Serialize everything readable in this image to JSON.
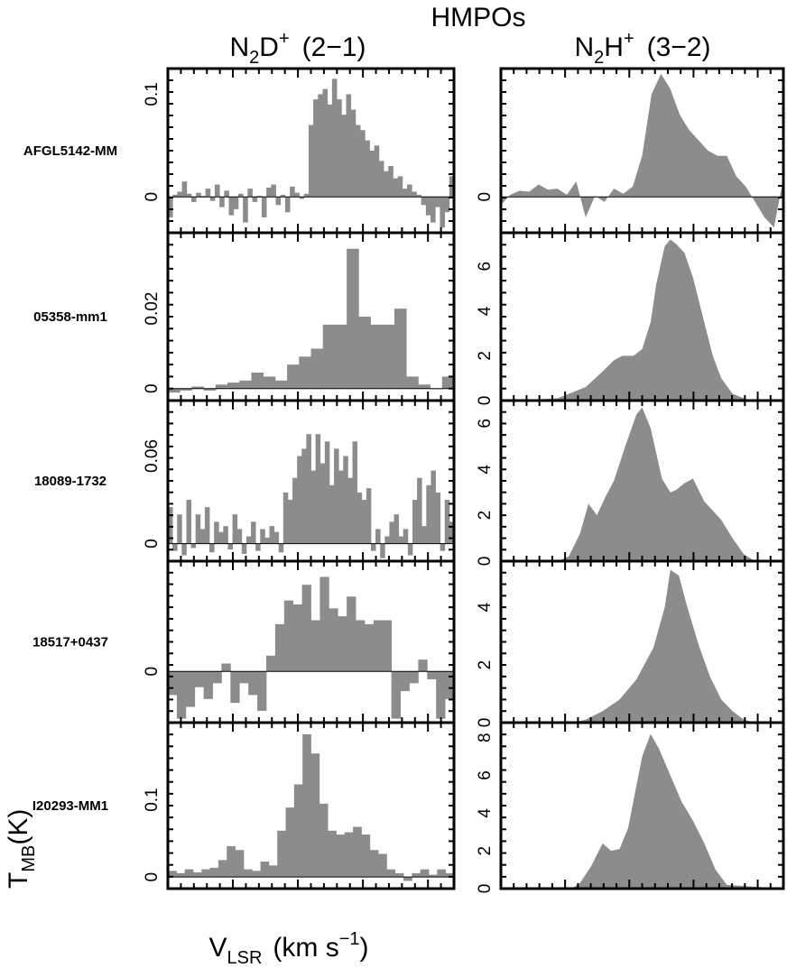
{
  "figure": {
    "header": "HMPOs",
    "col_left": {
      "main": "N",
      "sub": "2",
      "rest": "D",
      "sup": "+",
      "trans": "(2−1)"
    },
    "col_right": {
      "main": "N",
      "sub": "2",
      "rest": "H",
      "sup": "+",
      "trans": "(3−2)"
    },
    "ylabel": {
      "main": "T",
      "sub": "MB",
      "rest": "(K)"
    },
    "xlabel": {
      "main": "V",
      "sub": "LSR",
      "rest": "(km s",
      "sup": "−1",
      "close": ")"
    }
  },
  "chart_data": [
    {
      "type": "bar",
      "source": "AFGL5142-MM",
      "line": "N2D+ (2-1)",
      "ylim": [
        -0.035,
        0.125
      ],
      "yticks": [
        {
          "v": 0,
          "l": "0"
        },
        {
          "v": 0.1,
          "l": "0.1"
        }
      ],
      "values": [
        -0.02,
        0.002,
        0.005,
        0.015,
        0.003,
        -0.005,
        0.004,
        0.001,
        0.008,
        -0.004,
        0.012,
        -0.01,
        0.006,
        -0.018,
        -0.012,
        0.003,
        -0.025,
        0.008,
        -0.005,
        0.001,
        -0.02,
        0.009,
        0.012,
        -0.008,
        0.002,
        -0.015,
        0.01,
        0.004,
        -0.002,
        0.003,
        0.07,
        0.095,
        0.1,
        0.105,
        0.09,
        0.115,
        0.095,
        0.08,
        0.1,
        0.085,
        0.07,
        0.065,
        0.055,
        0.045,
        0.05,
        0.035,
        0.025,
        0.03,
        0.018,
        0.02,
        0.008,
        0.012,
        0.005,
        0.002,
        -0.008,
        -0.018,
        -0.025,
        -0.01,
        -0.03,
        -0.015,
        0.02
      ]
    },
    {
      "type": "bar",
      "source": "05358-mm1",
      "line": "N2D+ (2-1)",
      "ylim": [
        -0.003,
        0.039
      ],
      "yticks": [
        {
          "v": 0,
          "l": "0"
        },
        {
          "v": 0.02,
          "l": "0.02"
        }
      ],
      "values": [
        -0.001,
        -0.0005,
        0.0005,
        -0.0005,
        0.001,
        0.0015,
        0.002,
        0.004,
        0.003,
        0.002,
        0.006,
        0.008,
        0.01,
        0.016,
        0.016,
        0.035,
        0.018,
        0.016,
        0.016,
        0.02,
        0.003,
        0.001,
        0,
        0.003
      ]
    },
    {
      "type": "bar",
      "source": "18089-1732",
      "line": "N2D+ (2-1)",
      "ylim": [
        -0.012,
        0.098
      ],
      "yticks": [
        {
          "v": 0,
          "l": "0"
        },
        {
          "v": 0.06,
          "l": "0.06"
        }
      ],
      "values": [
        0.025,
        -0.005,
        0.02,
        -0.008,
        0.03,
        -0.003,
        0.02,
        0.01,
        0.025,
        -0.006,
        0.015,
        0.008,
        0.012,
        -0.004,
        0.02,
        0.01,
        -0.007,
        0.005,
        0.015,
        -0.005,
        0.01,
        0.004,
        0.012,
        0.008,
        -0.006,
        0.035,
        0.03,
        0.045,
        0.06,
        0.065,
        0.075,
        0.05,
        0.075,
        0.055,
        0.07,
        0.04,
        0.065,
        0.05,
        0.06,
        0.045,
        0.07,
        0.035,
        0.03,
        0.038,
        -0.005,
        0.01,
        -0.01,
        0.005,
        0.015,
        0.02,
        0.005,
        0.01,
        -0.008,
        0.03,
        0.045,
        0.012,
        0.04,
        0.05,
        0.035,
        -0.005,
        0.03,
        0.015
      ]
    },
    {
      "type": "bar",
      "source": "18517+0437",
      "line": "N2D+ (2-1)",
      "ylim": [
        -0.013,
        0.028
      ],
      "yticks": [
        {
          "v": 0,
          "l": "0"
        }
      ],
      "values": [
        -0.006,
        -0.012,
        -0.009,
        -0.004,
        -0.007,
        -0.003,
        0.002,
        -0.008,
        -0.003,
        -0.006,
        -0.01,
        0.004,
        0.012,
        0.018,
        0.017,
        0.022,
        0.013,
        0.024,
        0.016,
        0.014,
        0.019,
        0.013,
        0.012,
        0.013,
        0.013,
        -0.012,
        -0.005,
        -0.003,
        0.003,
        -0.002,
        -0.012,
        -0.007
      ]
    },
    {
      "type": "bar",
      "source": "I20293-MM1",
      "line": "N2D+ (2-1)",
      "ylim": [
        -0.015,
        0.2
      ],
      "yticks": [
        {
          "v": 0,
          "l": "0"
        },
        {
          "v": 0.1,
          "l": "0.1"
        }
      ],
      "values": [
        0.008,
        0.005,
        0.01,
        0.006,
        0.01,
        0.012,
        0.022,
        0.04,
        0.035,
        0.01,
        0.008,
        0.02,
        0.015,
        0.06,
        0.09,
        0.12,
        0.185,
        0.16,
        0.095,
        0.06,
        0.055,
        0.058,
        0.065,
        0.055,
        0.035,
        0.03,
        0.01,
        0.005,
        -0.005,
        0.005,
        0.01,
        0.003,
        0.01,
        0.005
      ]
    },
    {
      "type": "area",
      "source": "AFGL5142-MM",
      "line": "N2H+ (3-2)",
      "ylim": [
        -0.035,
        0.125
      ],
      "yticks": [
        {
          "v": 0,
          "l": "0"
        }
      ],
      "values": [
        -0.008,
        0.002,
        0.006,
        0.005,
        0.012,
        0.007,
        0.008,
        0.002,
        0.015,
        -0.02,
        0.001,
        -0.005,
        0.008,
        0.003,
        0.01,
        0.04,
        0.1,
        0.12,
        0.105,
        0.08,
        0.065,
        0.055,
        0.045,
        0.04,
        0.04,
        0.02,
        0.01,
        -0.005,
        -0.02,
        -0.03,
        0.018
      ]
    },
    {
      "type": "area",
      "source": "05358-mm1",
      "line": "N2H+ (3-2)",
      "ylim": [
        0,
        7.5
      ],
      "yticks": [
        {
          "v": 0,
          "l": "0"
        },
        {
          "v": 2,
          "l": "2"
        },
        {
          "v": 4,
          "l": "4"
        },
        {
          "v": 6,
          "l": "6"
        }
      ],
      "x": [
        0,
        0.05,
        0.2,
        0.3,
        0.36,
        0.4,
        0.43,
        0.47,
        0.5,
        0.53,
        0.55,
        0.58,
        0.6,
        0.62,
        0.65,
        0.68,
        0.72,
        0.75,
        0.78,
        0.82,
        0.88,
        1
      ],
      "values": [
        0,
        0,
        0.1,
        0.6,
        1.3,
        1.8,
        2.0,
        2.0,
        2.3,
        3.5,
        5.2,
        6.9,
        7.2,
        7.0,
        6.6,
        5.5,
        3.5,
        2.0,
        1.0,
        0.3,
        0,
        0
      ]
    },
    {
      "type": "area",
      "source": "18089-1732",
      "line": "N2H+ (3-2)",
      "ylim": [
        0,
        7
      ],
      "yticks": [
        {
          "v": 0,
          "l": "0"
        },
        {
          "v": 2,
          "l": "2"
        },
        {
          "v": 4,
          "l": "4"
        },
        {
          "v": 6,
          "l": "6"
        }
      ],
      "x": [
        0,
        0.2,
        0.24,
        0.28,
        0.31,
        0.34,
        0.37,
        0.4,
        0.44,
        0.48,
        0.5,
        0.53,
        0.57,
        0.6,
        0.62,
        0.65,
        0.68,
        0.72,
        0.75,
        0.78,
        0.82,
        0.86,
        0.9,
        1
      ],
      "values": [
        0,
        0,
        0.2,
        1.2,
        2.5,
        2.0,
        2.8,
        3.5,
        5.0,
        6.4,
        6.7,
        5.8,
        3.6,
        3.0,
        3.1,
        3.4,
        3.6,
        2.6,
        2.2,
        1.8,
        1.0,
        0.3,
        0,
        0
      ]
    },
    {
      "type": "area",
      "source": "18517+0437",
      "line": "N2H+ (3-2)",
      "ylim": [
        0,
        5.6
      ],
      "yticks": [
        {
          "v": 0,
          "l": "0"
        },
        {
          "v": 2,
          "l": "2"
        },
        {
          "v": 4,
          "l": "4"
        }
      ],
      "x": [
        0,
        0.25,
        0.3,
        0.36,
        0.42,
        0.48,
        0.54,
        0.58,
        0.6,
        0.63,
        0.66,
        0.7,
        0.74,
        0.78,
        0.82,
        0.86,
        0.9,
        1
      ],
      "values": [
        0,
        0,
        0.1,
        0.4,
        0.8,
        1.5,
        2.6,
        4.0,
        5.3,
        5.1,
        4.0,
        2.7,
        1.6,
        0.8,
        0.4,
        0.1,
        0,
        0
      ]
    },
    {
      "type": "area",
      "source": "I20293-MM1",
      "line": "N2H+ (3-2)",
      "ylim": [
        0,
        8.8
      ],
      "yticks": [
        {
          "v": 0,
          "l": "0"
        },
        {
          "v": 2,
          "l": "2"
        },
        {
          "v": 4,
          "l": "4"
        },
        {
          "v": 6,
          "l": "6"
        },
        {
          "v": 8,
          "l": "8"
        }
      ],
      "x": [
        0,
        0.25,
        0.28,
        0.32,
        0.36,
        0.39,
        0.42,
        0.45,
        0.5,
        0.53,
        0.56,
        0.6,
        0.64,
        0.68,
        0.72,
        0.76,
        0.8,
        1
      ],
      "values": [
        0,
        0,
        0.3,
        1.2,
        2.4,
        2.0,
        2.1,
        3.2,
        7.0,
        8.2,
        7.4,
        6.0,
        4.6,
        3.6,
        2.4,
        1.0,
        0.2,
        0
      ]
    }
  ]
}
